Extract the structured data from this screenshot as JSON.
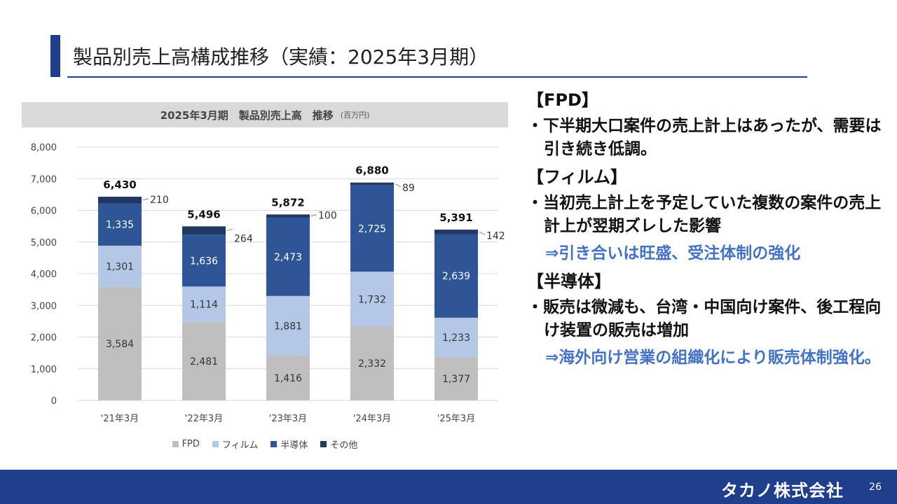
{
  "header": {
    "title": "製品別売上高構成推移（実績：2025年3月期）"
  },
  "chart_data": {
    "type": "bar",
    "stacked": true,
    "title": "2025年3月期　製品別売上高　推移",
    "unit": "(百万円)",
    "categories": [
      "'21年3月",
      "'22年3月",
      "'23年3月",
      "'24年3月",
      "'25年3月"
    ],
    "series": [
      {
        "name": "FPD",
        "values": [
          3584,
          2481,
          1416,
          2332,
          1377
        ],
        "color": "#bfbfbf"
      },
      {
        "name": "フィルム",
        "values": [
          1301,
          1114,
          1881,
          1732,
          1233
        ],
        "color": "#b4c7e7"
      },
      {
        "name": "半導体",
        "values": [
          1335,
          1636,
          2473,
          2725,
          2639
        ],
        "color": "#2f5597"
      },
      {
        "name": "その他",
        "values": [
          210,
          264,
          100,
          89,
          142
        ],
        "color": "#1f3864"
      }
    ],
    "totals": [
      6430,
      5496,
      5872,
      6880,
      5391
    ],
    "ylim": [
      0,
      8000
    ],
    "yticks": [
      0,
      1000,
      2000,
      3000,
      4000,
      5000,
      6000,
      7000,
      8000
    ],
    "legend_position": "bottom",
    "grid": true
  },
  "side_panel": {
    "fpd_heading": "【FPD】",
    "fpd_bullet": "・下半期大口案件の売上計上はあったが、需要は引き続き低調。",
    "film_heading": "【フィルム】",
    "film_bullet": "・当初売上計上を予定していた複数の案件の売上計上が翌期ズレした影響",
    "film_highlight": "⇒引き合いは旺盛、受注体制の強化",
    "semi_heading": "【半導体】",
    "semi_bullet": "・販売は微減も、台湾・中国向け案件、後工程向け装置の販売は増加",
    "semi_highlight": "⇒海外向け営業の組織化により販売体制強化。"
  },
  "footer": {
    "company": "タカノ株式会社",
    "page_number": "26"
  },
  "colors": {
    "brand_navy": "#1f3e8c",
    "highlight_blue": "#4472c4"
  }
}
